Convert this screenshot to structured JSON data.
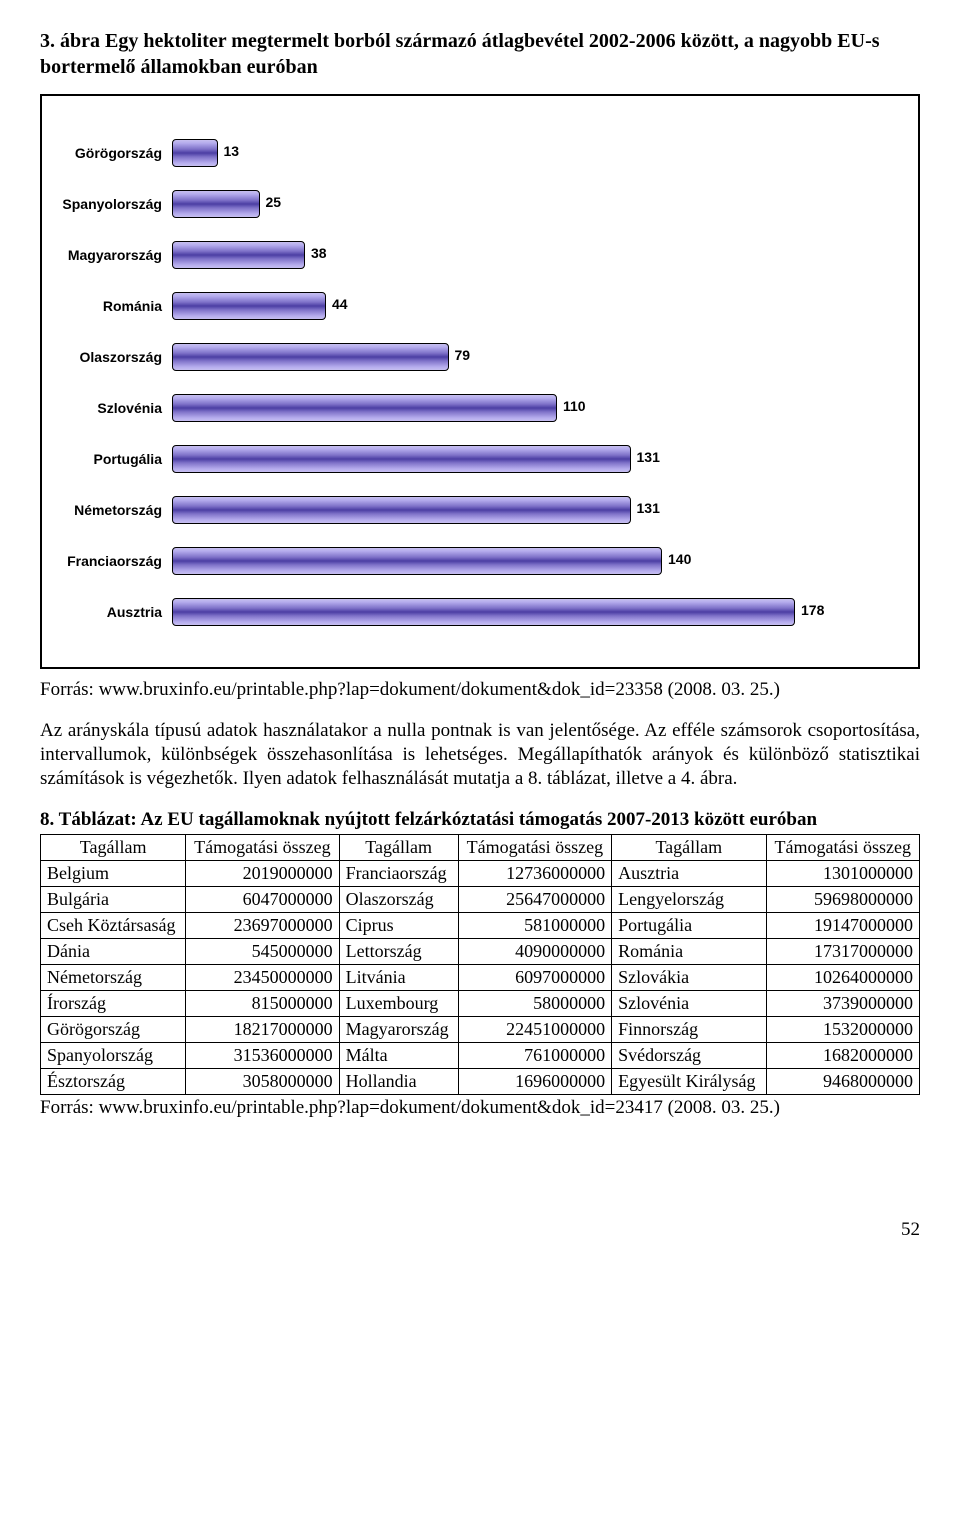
{
  "title": "3. ábra Egy hektoliter megtermelt borból származó átlagbevétel 2002-2006 között, a nagyobb EU-s bortermelő államokban euróban",
  "chart": {
    "type": "bar-horizontal",
    "max_value": 200,
    "bar_color_gradient": [
      "#c7bff0",
      "#b5aced",
      "#7f72c9",
      "#4b3ea3",
      "#7f72c9",
      "#b5aced",
      "#c7bff0"
    ],
    "border_color": "#000000",
    "background_color": "#ffffff",
    "label_fontsize": 14,
    "value_fontsize": 14,
    "items": [
      {
        "label": "Görögország",
        "value": 13
      },
      {
        "label": "Spanyolország",
        "value": 25
      },
      {
        "label": "Magyarország",
        "value": 38
      },
      {
        "label": "Románia",
        "value": 44
      },
      {
        "label": "Olaszország",
        "value": 79
      },
      {
        "label": "Szlovénia",
        "value": 110
      },
      {
        "label": "Portugália",
        "value": 131
      },
      {
        "label": "Németország",
        "value": 131
      },
      {
        "label": "Franciaország",
        "value": 140
      },
      {
        "label": "Ausztria",
        "value": 178
      }
    ]
  },
  "source1": "Forrás: www.bruxinfo.eu/printable.php?lap=dokument/dokument&dok_id=23358 (2008. 03. 25.)",
  "paragraph": "Az arányskála típusú adatok használatakor a nulla pontnak is van jelentősége. Az efféle számsorok csoportosítása, intervallumok, különbségek összehasonlítása is lehetséges. Megállapíthatók arányok és különböző statisztikai számítások is végezhetők. Ilyen adatok felhasználását mutatja a 8. táblázat, illetve a 4. ábra.",
  "table_title": "8. Táblázat: Az EU tagállamoknak nyújtott felzárkóztatási támogatás 2007-2013 között euróban",
  "table": {
    "columns": [
      "Tagállam",
      "Támogatási összeg",
      "Tagállam",
      "Támogatási összeg",
      "Tagállam",
      "Támogatási összeg"
    ],
    "rows": [
      [
        "Belgium",
        "2019000000",
        "Franciaország",
        "12736000000",
        "Ausztria",
        "1301000000"
      ],
      [
        "Bulgária",
        "6047000000",
        "Olaszország",
        "25647000000",
        "Lengyelország",
        "59698000000"
      ],
      [
        "Cseh Köztársaság",
        "23697000000",
        "Ciprus",
        "581000000",
        "Portugália",
        "19147000000"
      ],
      [
        "Dánia",
        "545000000",
        "Lettország",
        "4090000000",
        "Románia",
        "17317000000"
      ],
      [
        "Németország",
        "23450000000",
        "Litvánia",
        "6097000000",
        "Szlovákia",
        "10264000000"
      ],
      [
        "Írország",
        "815000000",
        "Luxembourg",
        "58000000",
        "Szlovénia",
        "3739000000"
      ],
      [
        "Görögország",
        "18217000000",
        "Magyarország",
        "22451000000",
        "Finnország",
        "1532000000"
      ],
      [
        "Spanyolország",
        "31536000000",
        "Málta",
        "761000000",
        "Svédország",
        "1682000000"
      ],
      [
        "Észtország",
        "3058000000",
        "Hollandia",
        "1696000000",
        "Egyesült Királyság",
        "9468000000"
      ]
    ]
  },
  "source2": "Forrás: www.bruxinfo.eu/printable.php?lap=dokument/dokument&dok_id=23417 (2008. 03. 25.)",
  "page_number": "52"
}
